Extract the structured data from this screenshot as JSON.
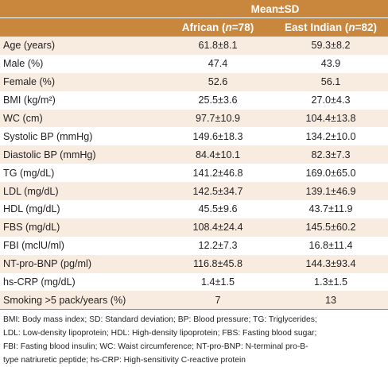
{
  "table": {
    "header_group": "Mean±SD",
    "columns": [
      {
        "name": "African",
        "n_label": "n",
        "n_value": "=78"
      },
      {
        "name": "East Indian",
        "n_label": "n",
        "n_value": "=82"
      }
    ],
    "rows": [
      {
        "label": "Age (years)",
        "african": "61.8±8.1",
        "east_indian": "59.3±8.2"
      },
      {
        "label": "Male (%)",
        "african": "47.4",
        "east_indian": "43.9"
      },
      {
        "label": "Female (%)",
        "african": "52.6",
        "east_indian": "56.1"
      },
      {
        "label": "BMI (kg/m²)",
        "african": "25.5±3.6",
        "east_indian": "27.0±4.3"
      },
      {
        "label": "WC (cm)",
        "african": "97.7±10.9",
        "east_indian": "104.4±13.8"
      },
      {
        "label": "Systolic BP (mmHg)",
        "african": "149.6±18.3",
        "east_indian": "134.2±10.0"
      },
      {
        "label": "Diastolic BP (mmHg)",
        "african": "84.4±10.1",
        "east_indian": "82.3±7.3"
      },
      {
        "label": "TG (mg/dL)",
        "african": "141.2±46.8",
        "east_indian": "169.0±65.0"
      },
      {
        "label": "LDL (mg/dL)",
        "african": "142.5±34.7",
        "east_indian": "139.1±46.9"
      },
      {
        "label": "HDL (mg/dL)",
        "african": "45.5±9.6",
        "east_indian": "43.7±11.9"
      },
      {
        "label": "FBS (mg/dL)",
        "african": "108.4±24.4",
        "east_indian": "145.5±60.2"
      },
      {
        "label": "FBI (mclU/ml)",
        "african": "12.2±7.3",
        "east_indian": "16.8±11.4"
      },
      {
        "label": "NT-pro-BNP (pg/ml)",
        "african": "116.8±45.8",
        "east_indian": "144.3±93.4"
      },
      {
        "label": "hs-CRP (mg/dL)",
        "african": "1.4±1.5",
        "east_indian": "1.3±1.5"
      },
      {
        "label": "Smoking >5 pack/years (%)",
        "african": "7",
        "east_indian": "13"
      }
    ]
  },
  "footnote": {
    "lines": [
      "BMI: Body mass index; SD: Standard deviation; BP: Blood pressure; TG: Triglycerides;",
      "LDL: Low-density lipoprotein; HDL: High-density lipoprotein; FBS: Fasting blood sugar;",
      "FBI: Fasting blood insulin; WC: Waist circumference; NT-pro-BNP: N-terminal pro-B-",
      "type natriuretic peptide; hs-CRP: High-sensitivity C-reactive protein"
    ]
  },
  "colors": {
    "header_bg": "#c9873e",
    "stripe_bg": "#f8ece0"
  }
}
